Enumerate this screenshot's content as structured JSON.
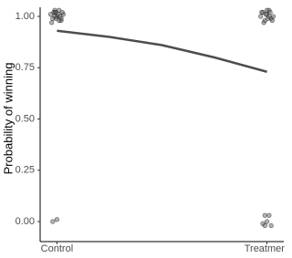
{
  "chart_data": {
    "type": "scatter",
    "ylabel": "Probability of winning",
    "xlim": [
      0.92,
      2.08
    ],
    "ylim": [
      0,
      1
    ],
    "xticks": [
      {
        "value": 1,
        "label": "Control"
      },
      {
        "value": 2,
        "label": "Treatment"
      }
    ],
    "yticks": [
      {
        "value": 0,
        "label": "0.00"
      },
      {
        "value": 0.25,
        "label": "0.25"
      },
      {
        "value": 0.5,
        "label": "0.50"
      },
      {
        "value": 0.75,
        "label": "0.75"
      },
      {
        "value": 1,
        "label": "1.00"
      }
    ],
    "grid": false,
    "series": [
      {
        "type": "scatter",
        "color": "#555555",
        "x": [
          0.97,
          0.98,
          0.99,
          1.0,
          1.01,
          1.02,
          1.03,
          0.975,
          0.985,
          0.995,
          1.005,
          1.015,
          1.025,
          0.99,
          1.01,
          1.0,
          0.98,
          1.02,
          0.99,
          0.995,
          1.97,
          1.98,
          1.99,
          2.0,
          2.01,
          2.02,
          2.03,
          1.975,
          1.985,
          1.995,
          2.005,
          2.015,
          2.025,
          1.99,
          2.01,
          2.0,
          1.98,
          2.02,
          1.99,
          2.0,
          2.01
        ],
        "values": [
          1.01,
          0.99,
          1.02,
          1.0,
          1.03,
          0.98,
          1.01,
          0.97,
          1.02,
          0.99,
          1.01,
          1.0,
          1.02,
          1.03,
          0.98,
          0.01,
          0.0,
          0.99,
          1.0,
          1.02,
          1.0,
          1.02,
          0.98,
          1.01,
          1.03,
          0.99,
          1.0,
          1.02,
          0.97,
          1.01,
          0.99,
          1.02,
          0.98,
          0.03,
          0.03,
          0.0,
          -0.01,
          -0.02,
          -0.02,
          1.03,
          1.0
        ]
      },
      {
        "type": "line",
        "color": "#4d4d4d",
        "x": [
          1,
          1.25,
          1.5,
          1.75,
          2
        ],
        "values": [
          0.93,
          0.9,
          0.86,
          0.8,
          0.73
        ]
      }
    ]
  }
}
